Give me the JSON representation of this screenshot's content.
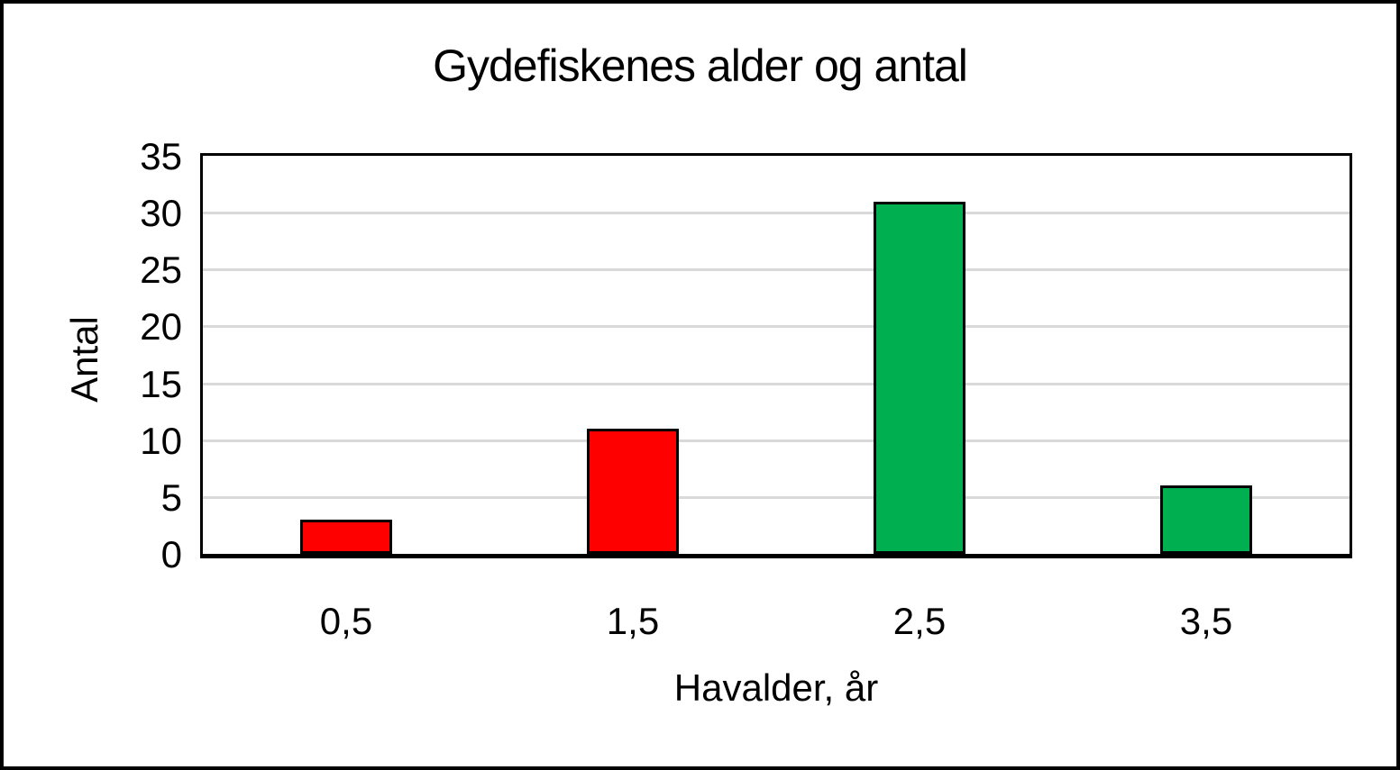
{
  "chart_data": {
    "type": "bar",
    "title": "Gydefiskenes alder og antal",
    "xlabel": "Havalder, år",
    "ylabel": "Antal",
    "categories": [
      "0,5",
      "1,5",
      "2,5",
      "3,5"
    ],
    "values": [
      3,
      11,
      31,
      6
    ],
    "bar_colors": [
      "#ff0000",
      "#ff0000",
      "#00b050",
      "#00b050"
    ],
    "bar_border_color": "#000000",
    "yticks": [
      0,
      5,
      10,
      15,
      20,
      25,
      30,
      35
    ],
    "ylim": [
      0,
      35
    ],
    "grid": "horizontal",
    "gridline_color": "#d9d9d9",
    "plot_border_color": "#000000",
    "frame_border_color": "#000000",
    "background_color": "#ffffff",
    "legend": "none"
  }
}
